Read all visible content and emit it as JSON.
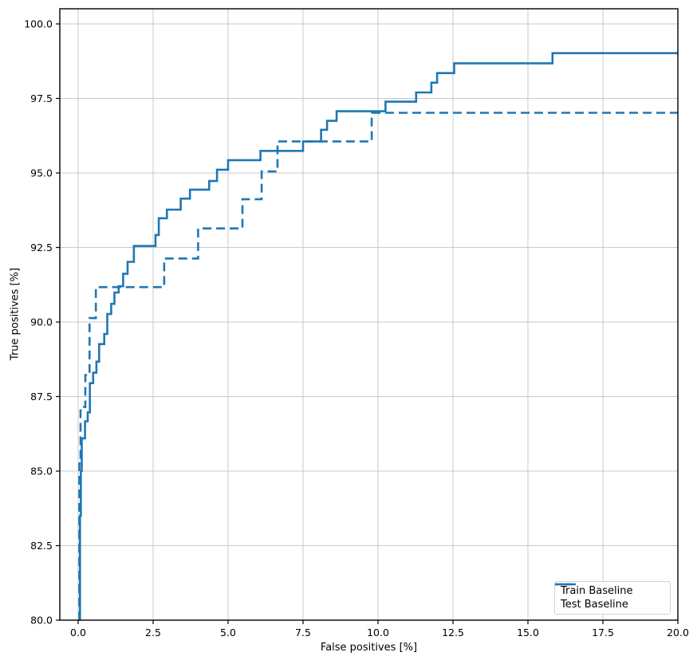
{
  "colors": {
    "line": "#1f77b4",
    "grid": "#c9c9c9",
    "spine": "#000000",
    "text": "#000000",
    "background": "#ffffff"
  },
  "chart_data": {
    "type": "line",
    "subtype": "step",
    "title": "",
    "xlabel": "False positives [%]",
    "ylabel": "True positives [%]",
    "xlim": [
      -0.61,
      20.0
    ],
    "ylim": [
      80.0,
      100.5
    ],
    "grid": true,
    "xticks": [
      0.0,
      2.5,
      5.0,
      7.5,
      10.0,
      12.5,
      15.0,
      17.5,
      20.0
    ],
    "yticks": [
      80.0,
      82.5,
      85.0,
      87.5,
      90.0,
      92.5,
      95.0,
      97.5,
      100.0
    ],
    "xtick_labels": [
      "0.0",
      "2.5",
      "5.0",
      "7.5",
      "10.0",
      "12.5",
      "15.0",
      "17.5",
      "20.0"
    ],
    "ytick_labels": [
      "80.0",
      "82.5",
      "85.0",
      "87.5",
      "90.0",
      "92.5",
      "95.0",
      "97.5",
      "100.0"
    ],
    "legend": {
      "position": "lower right",
      "entries": [
        {
          "label": "Train Baseline",
          "style": "solid"
        },
        {
          "label": "Test Baseline",
          "style": "dashed"
        }
      ]
    },
    "series": [
      {
        "name": "Train Baseline",
        "style": "solid",
        "color": "#1f77b4",
        "points": [
          [
            0.06,
            80.0
          ],
          [
            0.06,
            83.5
          ],
          [
            0.09,
            83.5
          ],
          [
            0.09,
            85.0
          ],
          [
            0.12,
            85.0
          ],
          [
            0.12,
            86.1
          ],
          [
            0.23,
            86.1
          ],
          [
            0.23,
            86.67
          ],
          [
            0.32,
            86.67
          ],
          [
            0.32,
            86.97
          ],
          [
            0.39,
            86.97
          ],
          [
            0.39,
            87.95
          ],
          [
            0.5,
            87.95
          ],
          [
            0.5,
            88.3
          ],
          [
            0.61,
            88.3
          ],
          [
            0.61,
            88.67
          ],
          [
            0.7,
            88.67
          ],
          [
            0.7,
            89.26
          ],
          [
            0.87,
            89.26
          ],
          [
            0.87,
            89.6
          ],
          [
            0.97,
            89.6
          ],
          [
            0.97,
            90.27
          ],
          [
            1.1,
            90.27
          ],
          [
            1.1,
            90.61
          ],
          [
            1.21,
            90.61
          ],
          [
            1.21,
            90.99
          ],
          [
            1.35,
            90.99
          ],
          [
            1.35,
            91.2
          ],
          [
            1.5,
            91.2
          ],
          [
            1.5,
            91.62
          ],
          [
            1.65,
            91.62
          ],
          [
            1.65,
            92.02
          ],
          [
            1.86,
            92.02
          ],
          [
            1.86,
            92.55
          ],
          [
            2.58,
            92.55
          ],
          [
            2.58,
            92.92
          ],
          [
            2.69,
            92.92
          ],
          [
            2.69,
            93.48
          ],
          [
            2.96,
            93.48
          ],
          [
            2.96,
            93.77
          ],
          [
            3.42,
            93.77
          ],
          [
            3.42,
            94.14
          ],
          [
            3.73,
            94.14
          ],
          [
            3.73,
            94.44
          ],
          [
            4.37,
            94.44
          ],
          [
            4.37,
            94.73
          ],
          [
            4.63,
            94.73
          ],
          [
            4.63,
            95.11
          ],
          [
            5.0,
            95.11
          ],
          [
            5.0,
            95.43
          ],
          [
            6.08,
            95.43
          ],
          [
            6.08,
            95.74
          ],
          [
            7.5,
            95.74
          ],
          [
            7.5,
            96.06
          ],
          [
            8.1,
            96.06
          ],
          [
            8.1,
            96.45
          ],
          [
            8.3,
            96.45
          ],
          [
            8.3,
            96.75
          ],
          [
            8.62,
            96.75
          ],
          [
            8.62,
            97.07
          ],
          [
            10.25,
            97.07
          ],
          [
            10.25,
            97.39
          ],
          [
            11.27,
            97.39
          ],
          [
            11.27,
            97.7
          ],
          [
            11.78,
            97.7
          ],
          [
            11.78,
            98.03
          ],
          [
            11.97,
            98.03
          ],
          [
            11.97,
            98.35
          ],
          [
            12.54,
            98.35
          ],
          [
            12.54,
            98.68
          ],
          [
            15.82,
            98.68
          ],
          [
            15.82,
            99.02
          ],
          [
            20.0,
            99.02
          ]
        ]
      },
      {
        "name": "Test Baseline",
        "style": "dashed",
        "color": "#1f77b4",
        "points": [
          [
            0.04,
            80.0
          ],
          [
            0.04,
            85.37
          ],
          [
            0.08,
            85.37
          ],
          [
            0.08,
            87.15
          ],
          [
            0.24,
            87.15
          ],
          [
            0.24,
            88.22
          ],
          [
            0.38,
            88.22
          ],
          [
            0.38,
            90.13
          ],
          [
            0.59,
            90.13
          ],
          [
            0.59,
            91.17
          ],
          [
            2.87,
            91.17
          ],
          [
            2.87,
            92.13
          ],
          [
            4.0,
            92.13
          ],
          [
            4.0,
            93.14
          ],
          [
            5.48,
            93.14
          ],
          [
            5.48,
            94.12
          ],
          [
            6.12,
            94.12
          ],
          [
            6.12,
            95.05
          ],
          [
            6.65,
            95.05
          ],
          [
            6.65,
            96.06
          ],
          [
            9.79,
            96.06
          ],
          [
            9.79,
            97.02
          ],
          [
            20.0,
            97.02
          ]
        ]
      }
    ]
  }
}
